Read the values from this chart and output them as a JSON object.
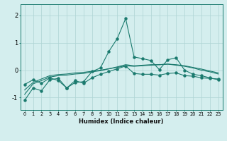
{
  "x": [
    0,
    1,
    2,
    3,
    4,
    5,
    6,
    7,
    8,
    9,
    10,
    11,
    12,
    13,
    14,
    15,
    16,
    17,
    18,
    19,
    20,
    21,
    22,
    23
  ],
  "line1": [
    -1.1,
    -0.65,
    -0.75,
    -0.35,
    -0.3,
    -0.65,
    -0.45,
    -0.42,
    -0.05,
    0.08,
    0.68,
    1.15,
    1.88,
    0.48,
    0.42,
    0.35,
    0.02,
    0.38,
    0.45,
    0.0,
    -0.15,
    -0.2,
    -0.28,
    -0.35
  ],
  "line2": [
    -0.52,
    -0.35,
    -0.48,
    -0.28,
    -0.38,
    -0.65,
    -0.38,
    -0.48,
    -0.28,
    -0.15,
    -0.05,
    0.05,
    0.15,
    -0.12,
    -0.15,
    -0.15,
    -0.18,
    -0.12,
    -0.1,
    -0.2,
    -0.22,
    -0.28,
    -0.3,
    -0.32
  ],
  "line3": [
    -0.72,
    -0.45,
    -0.32,
    -0.2,
    -0.16,
    -0.14,
    -0.1,
    -0.08,
    -0.04,
    0.0,
    0.05,
    0.1,
    0.16,
    0.14,
    0.16,
    0.18,
    0.2,
    0.22,
    0.2,
    0.16,
    0.1,
    0.04,
    -0.03,
    -0.1
  ],
  "line4": [
    -0.88,
    -0.5,
    -0.38,
    -0.25,
    -0.2,
    -0.18,
    -0.14,
    -0.12,
    -0.06,
    -0.02,
    0.05,
    0.12,
    0.2,
    0.16,
    0.18,
    0.2,
    0.2,
    0.22,
    0.18,
    0.14,
    0.08,
    0.0,
    -0.06,
    -0.14
  ],
  "line_color": "#1a7a6e",
  "bg_color": "#d4eeee",
  "grid_color": "#aed4d4",
  "xlabel": "Humidex (Indice chaleur)",
  "yticks": [
    -1,
    0,
    1,
    2
  ],
  "xlim": [
    -0.5,
    23.5
  ],
  "ylim": [
    -1.45,
    2.4
  ]
}
